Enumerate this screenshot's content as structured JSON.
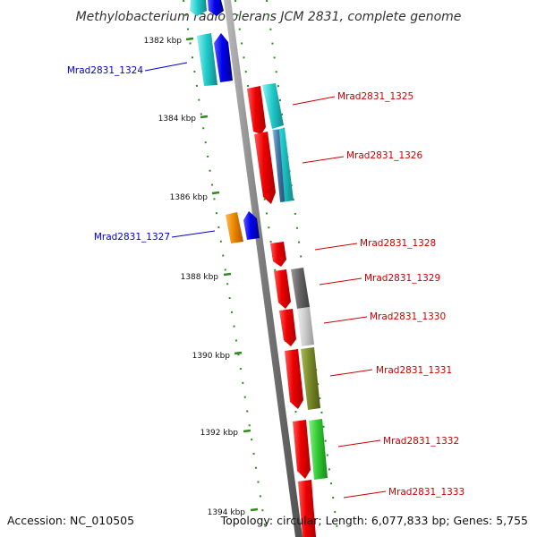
{
  "title": "Methylobacterium radiotolerans JCM 2831, complete genome",
  "footer": {
    "accession": "Accession: NC_010505",
    "topology": "Topology: circular; Length: 6,077,833 bp; Genes: 5,755"
  },
  "colors": {
    "backbone": "#888888",
    "tick": "#2e8b1e",
    "label_forward": "#0000cc",
    "label_reverse": "#cc0000"
  },
  "ticks": [
    {
      "label": "1382 kbp"
    },
    {
      "label": "1384 kbp"
    },
    {
      "label": "1386 kbp"
    },
    {
      "label": "1388 kbp"
    },
    {
      "label": "1390 kbp"
    },
    {
      "label": "1392 kbp"
    },
    {
      "label": "1394 kbp"
    }
  ],
  "gene_labels": [
    {
      "name": "Mrad2831_1324",
      "strand": "forward"
    },
    {
      "name": "Mrad2831_1325",
      "strand": "reverse"
    },
    {
      "name": "Mrad2831_1326",
      "strand": "reverse"
    },
    {
      "name": "Mrad2831_1327",
      "strand": "forward"
    },
    {
      "name": "Mrad2831_1328",
      "strand": "reverse"
    },
    {
      "name": "Mrad2831_1329",
      "strand": "reverse"
    },
    {
      "name": "Mrad2831_1330",
      "strand": "reverse"
    },
    {
      "name": "Mrad2831_1331",
      "strand": "reverse"
    },
    {
      "name": "Mrad2831_1332",
      "strand": "reverse"
    },
    {
      "name": "Mrad2831_1333",
      "strand": "reverse"
    }
  ]
}
